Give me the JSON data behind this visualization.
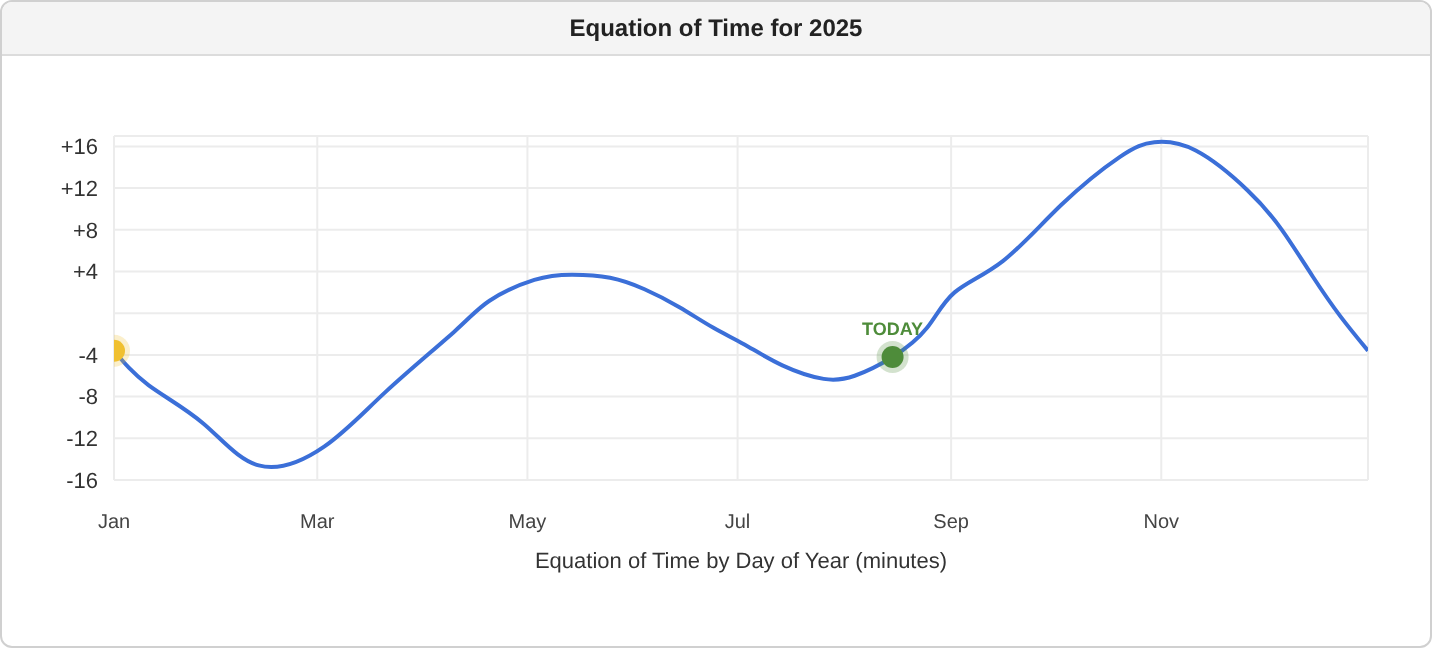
{
  "chart_data": {
    "type": "line",
    "title": "Equation of Time for 2025",
    "xlabel": "Equation of Time by Day of Year (minutes)",
    "series": [
      {
        "color": "#3b6fd8",
        "marker": "none",
        "x": [
          "--01-01",
          "--01-11",
          "--01-27",
          "--02-12",
          "--03-03",
          "--03-21",
          "--04-10",
          "--04-20",
          "--05-03",
          "--05-14",
          "--05-25",
          "--06-04",
          "--06-14",
          "--06-24",
          "--07-03",
          "--07-14",
          "--07-26",
          "--08-04",
          "--08-15",
          "--08-25",
          "--09-02",
          "--09-16",
          "--10-03",
          "--10-20",
          "--10-30",
          "--11-11",
          "--11-26",
          "--12-06",
          "--12-15",
          "--12-23",
          "--12-31"
        ],
        "values": [
          -3.6,
          -6.9,
          -10.6,
          -14.6,
          -12.8,
          -7.5,
          -1.7,
          1.2,
          3.2,
          3.7,
          3.4,
          2.3,
          0.6,
          -1.4,
          -3.0,
          -5.0,
          -6.3,
          -6.0,
          -4.2,
          -1.4,
          2.0,
          5.0,
          10.4,
          15.0,
          16.4,
          15.6,
          11.8,
          8.0,
          3.5,
          -0.3,
          -3.6
        ]
      },
      {
        "type": "scatter",
        "marker": "circle",
        "color": "#f0c030",
        "x": [
          "--01-01"
        ],
        "values": [
          -3.6
        ]
      },
      {
        "type": "scatter",
        "marker": "circle",
        "color": "#4e8c3a",
        "x": [
          "--08-15"
        ],
        "values": [
          -4.2
        ]
      }
    ],
    "annotations": [
      {
        "text": "TODAY",
        "x": "--08-15",
        "y": -4.2
      }
    ],
    "xlim": [
      "--01-01",
      "--12-31"
    ],
    "xticks": [
      {
        "value": "--01-01",
        "label": "Jan"
      },
      {
        "value": "--03-01",
        "label": "Mar"
      },
      {
        "value": "--05-01",
        "label": "May"
      },
      {
        "value": "--07-01",
        "label": "Jul"
      },
      {
        "value": "--09-01",
        "label": "Sep"
      },
      {
        "value": "--11-01",
        "label": "Nov"
      }
    ],
    "ylim": [
      -16,
      17
    ],
    "yticks": [
      {
        "value": -16,
        "label": "-16"
      },
      {
        "value": -12,
        "label": "-12"
      },
      {
        "value": -8,
        "label": "-8"
      },
      {
        "value": -4,
        "label": "-4"
      },
      {
        "value": 0,
        "label": null
      },
      {
        "value": 4,
        "label": "+4"
      },
      {
        "value": 8,
        "label": "+8"
      },
      {
        "value": 12,
        "label": "+12"
      },
      {
        "value": 16,
        "label": "+16"
      }
    ],
    "grid": true,
    "line_style": "solid"
  }
}
